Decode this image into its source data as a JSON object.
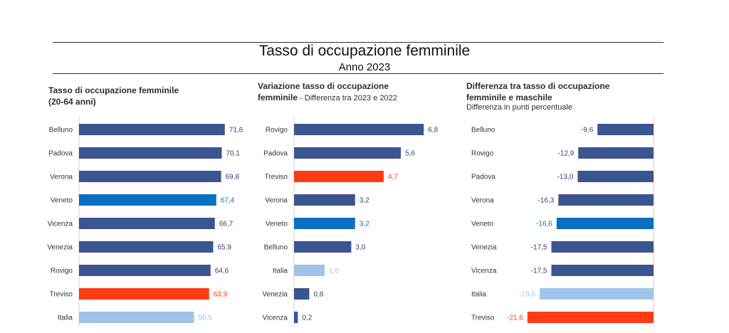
{
  "header": {
    "title": "Tasso di occupazione femminile",
    "subtitle": "Anno 2023"
  },
  "colors": {
    "default": "#3b5591",
    "veneto": "#0a6fc2",
    "treviso": "#ff3b14",
    "italia": "#9fc4e8"
  },
  "chart_data": [
    {
      "type": "bar",
      "orientation": "horizontal",
      "title": "Tasso di occupazione femminile",
      "title_line2": "(20-64 anni)",
      "categories": [
        "Belluno",
        "Padova",
        "Verona",
        "Veneto",
        "Vicenza",
        "Venezia",
        "Rovigo",
        "Treviso",
        "Italia"
      ],
      "values": [
        71.6,
        70.1,
        69.8,
        67.4,
        66.7,
        65.9,
        64.6,
        63.9,
        56.5
      ],
      "labels": [
        "71,6",
        "70,1",
        "69,8",
        "67,4",
        "66,7",
        "65,9",
        "64,6",
        "63,9",
        "56,5"
      ],
      "highlight": [
        "default",
        "default",
        "default",
        "veneto",
        "default",
        "default",
        "default",
        "treviso",
        "italia"
      ],
      "xlim": [
        0,
        80
      ]
    },
    {
      "type": "bar",
      "orientation": "horizontal",
      "title": "Variazione tasso di occupazione",
      "title_line2": "femminile",
      "title_note": " - Differenza tra 2023 e 2022",
      "categories": [
        "Rovigo",
        "Padova",
        "Treviso",
        "Verona",
        "Veneto",
        "Belluno",
        "Italia",
        "Venezia",
        "Vicenza"
      ],
      "values": [
        6.8,
        5.6,
        4.7,
        3.2,
        3.2,
        3.0,
        1.6,
        0.8,
        0.2
      ],
      "labels": [
        "6,8",
        "5,6",
        "4,7",
        "3,2",
        "3,2",
        "3,0",
        "1,6",
        "0,8",
        "0,2"
      ],
      "highlight": [
        "default",
        "default",
        "treviso",
        "default",
        "veneto",
        "default",
        "italia",
        "default",
        "default"
      ],
      "xlim": [
        0,
        8
      ]
    },
    {
      "type": "bar",
      "orientation": "horizontal",
      "title": "Differenza tra tasso di occupazione",
      "title_line2": "femminile e maschile",
      "subtitle": "Differenza in punti percentuale",
      "categories": [
        "Belluno",
        "Rovigo",
        "Padova",
        "Verona",
        "Veneto",
        "Venezia",
        "Vicenza",
        "Italia",
        "Treviso"
      ],
      "values": [
        -9.6,
        -12.9,
        -13.0,
        -16.3,
        -16.6,
        -17.5,
        -17.5,
        -19.5,
        -21.6
      ],
      "labels": [
        "-9,6",
        "-12,9",
        "-13,0",
        "-16,3",
        "-16,6",
        "-17,5",
        "-17,5",
        "-19,5",
        "-21,6"
      ],
      "highlight": [
        "default",
        "default",
        "default",
        "default",
        "veneto",
        "default",
        "default",
        "italia",
        "treviso"
      ],
      "xlim": [
        -25,
        0
      ]
    }
  ]
}
